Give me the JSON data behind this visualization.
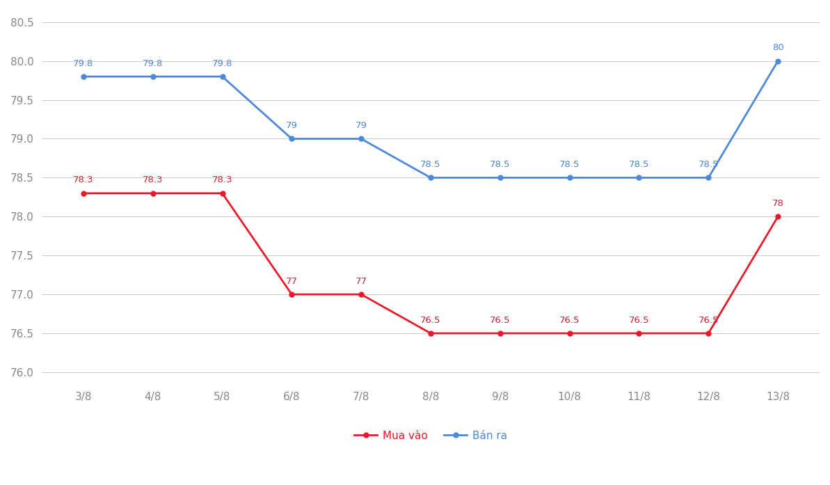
{
  "x_labels": [
    "3/8",
    "4/8",
    "5/8",
    "6/8",
    "7/8",
    "8/8",
    "9/8",
    "10/8",
    "11/8",
    "12/8",
    "13/8"
  ],
  "mua_vao": [
    78.3,
    78.3,
    78.3,
    77.0,
    77.0,
    76.5,
    76.5,
    76.5,
    76.5,
    76.5,
    78.0
  ],
  "ban_ra": [
    79.8,
    79.8,
    79.8,
    79.0,
    79.0,
    78.5,
    78.5,
    78.5,
    78.5,
    78.5,
    80.0
  ],
  "mua_vao_labels": [
    "78.3",
    "78.3",
    "78.3",
    "77",
    "77",
    "76.5",
    "76.5",
    "76.5",
    "76.5",
    "76.5",
    "78"
  ],
  "ban_ra_labels": [
    "79.8",
    "79.8",
    "79.8",
    "79",
    "79",
    "78.5",
    "78.5",
    "78.5",
    "78.5",
    "78.5",
    "80"
  ],
  "mua_vao_color": "#e8192c",
  "ban_ra_color": "#4d88d9",
  "background_color": "#ffffff",
  "grid_color": "#cccccc",
  "ylim_min": 75.85,
  "ylim_max": 80.65,
  "yticks": [
    76.0,
    76.5,
    77.0,
    77.5,
    78.0,
    78.5,
    79.0,
    79.5,
    80.0,
    80.5
  ],
  "legend_mua_vao": "Mua vào",
  "legend_ban_ra": "Bán ra",
  "marker_size": 5,
  "line_width": 2.0,
  "label_fontsize": 9.5,
  "tick_fontsize": 11,
  "legend_fontsize": 11,
  "tick_color": "#888888"
}
